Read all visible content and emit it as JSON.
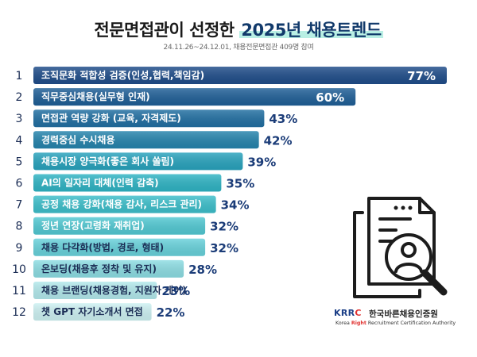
{
  "header": {
    "title_main": "전문면접관이 선정한",
    "title_highlight": "2025년 채용트렌드",
    "subtitle": "24.11.26~24.12.01, 채용전문면접관 409명 참여"
  },
  "chart_data": {
    "type": "bar",
    "orientation": "horizontal",
    "title": "전문면접관이 선정한 2025년 채용트렌드",
    "ranks": [
      "1",
      "2",
      "3",
      "4",
      "5",
      "6",
      "7",
      "8",
      "9",
      "10",
      "11",
      "12"
    ],
    "categories": [
      "조직문화 적합성 검증(인성,협력,책임감)",
      "직무중심채용(실무형 인재)",
      "면접관 역량 강화 (교육, 자격제도)",
      "경력중심 수시채용",
      "채용시장 양극화(좋은 회사 쏠림)",
      "AI의 일자리 대체(인력 감축)",
      "공정 채용 강화(채용 감사, 리스크 관리)",
      "정년 연장(고령화 재취업)",
      "채용 다각화(방법, 경로, 형태)",
      "온보딩(채용후 정착 및 유지)",
      "채용 브랜딩(채용경험, 지원자 케어)",
      "챗 GPT 자기소개서 면접"
    ],
    "values": [
      77,
      60,
      43,
      42,
      39,
      35,
      34,
      32,
      32,
      28,
      23,
      22
    ],
    "value_labels": [
      "77%",
      "60%",
      "43%",
      "42%",
      "39%",
      "35%",
      "34%",
      "32%",
      "32%",
      "28%",
      "23%",
      "22%"
    ],
    "xlim": [
      0,
      77
    ],
    "colors": [
      "#1f4d8a",
      "#1f5f97",
      "#216fa2",
      "#2584ad",
      "#29a3bd",
      "#2fb4c4",
      "#3dbfcb",
      "#52c9d3",
      "#68d2db",
      "#8ddde3",
      "#b3e9ec",
      "#cdf1f2"
    ]
  },
  "logo": {
    "mark_left": "KRR",
    "mark_accent": "C",
    "name": "한국바른채용인증원",
    "en_before": "Korea ",
    "en_accent": "Right",
    "en_after": " Recruitment Certification Authority"
  },
  "icons": [
    "document-search-icon"
  ]
}
